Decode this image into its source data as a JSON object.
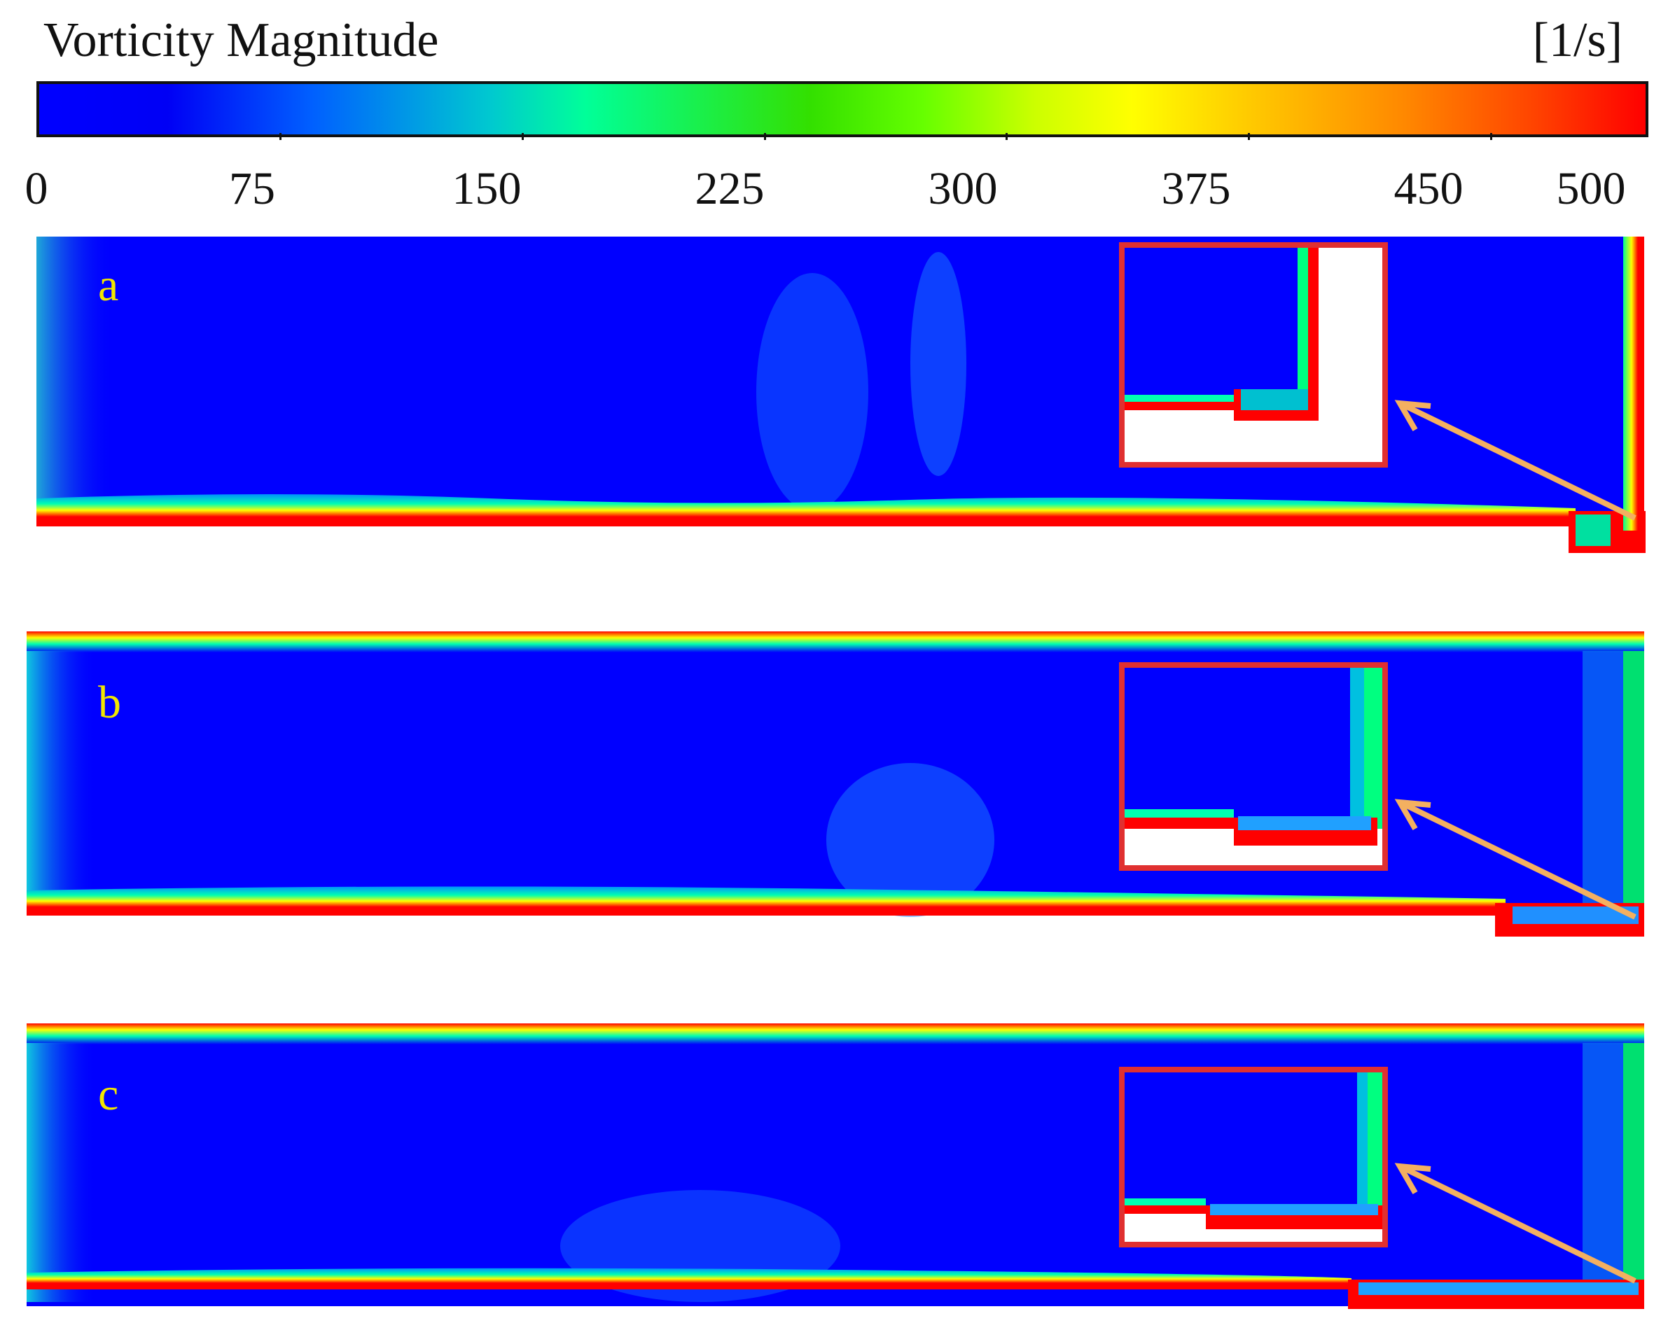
{
  "legend": {
    "title": "Vorticity Magnitude",
    "unit": "[1/s]",
    "ticks": [
      "0",
      "75",
      "150",
      "225",
      "300",
      "375",
      "450",
      "500"
    ],
    "colors": [
      "#0000ff",
      "#00c8d0",
      "#00ff99",
      "#33e000",
      "#ffff00",
      "#ff8800",
      "#ff0000"
    ]
  },
  "panels": [
    {
      "label": "a"
    },
    {
      "label": "b"
    },
    {
      "label": "c"
    }
  ],
  "colors": {
    "field": "#0000ff",
    "inset_border": "#e03030",
    "arrow": "#f4b060",
    "label": "#f2e600"
  }
}
